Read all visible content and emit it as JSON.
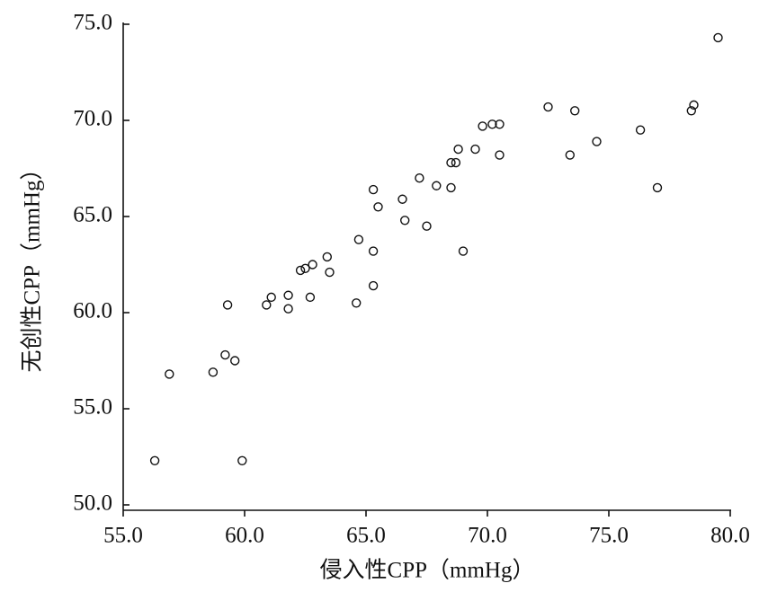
{
  "chart_data": {
    "type": "scatter",
    "x_label": "侵入性CPP（mmHg）",
    "y_label": "无创性CPP（mmHg）",
    "x": [
      56.3,
      56.9,
      58.7,
      59.2,
      59.6,
      59.3,
      59.9,
      60.9,
      61.1,
      61.8,
      61.8,
      62.3,
      62.5,
      62.8,
      62.7,
      63.4,
      63.5,
      64.6,
      64.7,
      65.3,
      65.3,
      65.3,
      65.5,
      66.5,
      66.6,
      67.2,
      67.5,
      67.9,
      68.5,
      68.5,
      68.7,
      68.8,
      69.0,
      69.5,
      69.8,
      70.2,
      70.5,
      70.5,
      72.5,
      73.6,
      73.4,
      74.5,
      76.3,
      77.0,
      78.4,
      78.5,
      79.5
    ],
    "y": [
      52.3,
      56.8,
      56.9,
      57.8,
      57.5,
      60.4,
      52.3,
      60.4,
      60.8,
      60.9,
      60.2,
      62.2,
      62.3,
      62.5,
      60.8,
      62.9,
      62.1,
      60.5,
      63.8,
      66.4,
      63.2,
      61.4,
      65.5,
      65.9,
      64.8,
      67.0,
      64.5,
      66.6,
      67.8,
      66.5,
      67.8,
      68.5,
      63.2,
      68.5,
      69.7,
      69.8,
      69.8,
      68.2,
      70.7,
      70.5,
      68.2,
      68.9,
      69.5,
      66.5,
      70.5,
      70.8,
      74.3
    ],
    "color": "#111111",
    "xlim": [
      55,
      80
    ],
    "ylim": [
      50,
      75
    ],
    "xticks": [
      {
        "value": 55,
        "label": "55.0"
      },
      {
        "value": 60,
        "label": "60.0"
      },
      {
        "value": 65,
        "label": "65.0"
      },
      {
        "value": 70,
        "label": "70.0"
      },
      {
        "value": 75,
        "label": "75.0"
      },
      {
        "value": 80,
        "label": "80.0"
      }
    ],
    "yticks": [
      {
        "value": 50,
        "label": "50.0"
      },
      {
        "value": 55,
        "label": "55.0"
      },
      {
        "value": 60,
        "label": "60.0"
      },
      {
        "value": 65,
        "label": "65.0"
      },
      {
        "value": 70,
        "label": "70.0"
      },
      {
        "value": 75,
        "label": "75.0"
      }
    ]
  }
}
